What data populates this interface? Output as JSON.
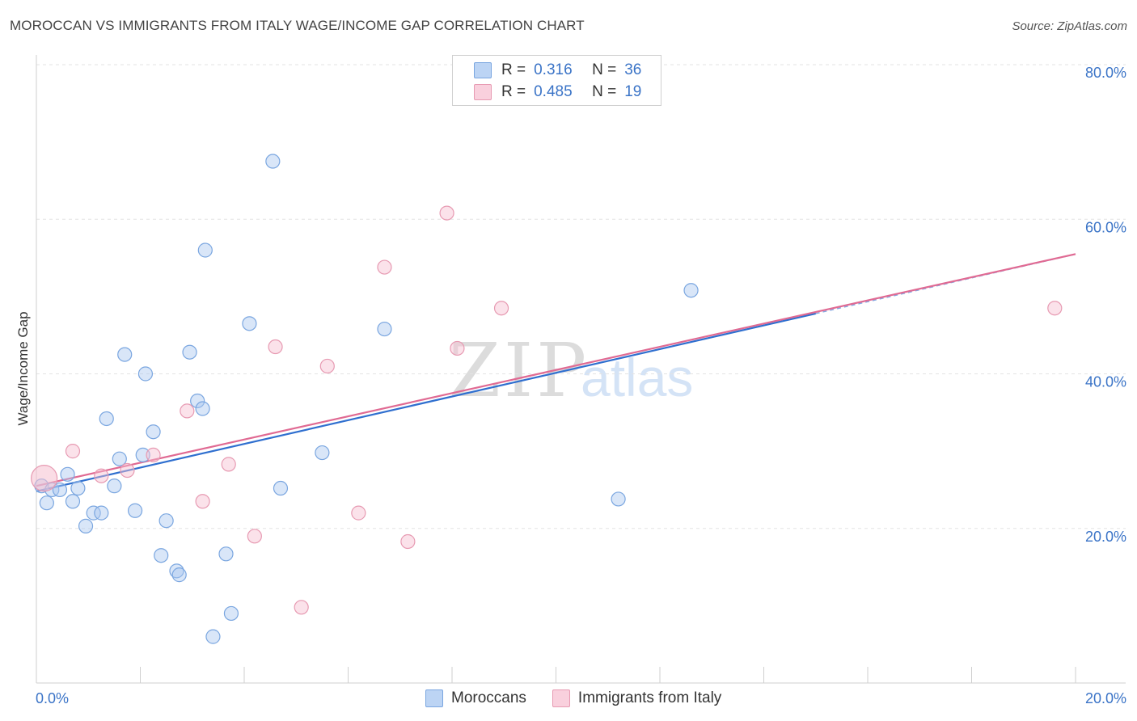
{
  "header": {
    "title": "MOROCCAN VS IMMIGRANTS FROM ITALY WAGE/INCOME GAP CORRELATION CHART",
    "source": "Source: ZipAtlas.com"
  },
  "watermark": {
    "zip": "ZIP",
    "atlas": "atlas"
  },
  "colors": {
    "blue_fill": "#aac8f0",
    "blue_stroke": "#7aa6e0",
    "blue_line": "#2f6fcf",
    "pink_fill": "#f6bfd0",
    "pink_stroke": "#e79ab2",
    "pink_line": "#e06a93",
    "accent_text": "#3b74c7"
  },
  "legend": {
    "rows": [
      {
        "r_label": "R =",
        "r_value": "0.316",
        "n_label": "N =",
        "n_value": "36"
      },
      {
        "r_label": "R =",
        "r_value": "0.485",
        "n_label": "N =",
        "n_value": "19"
      }
    ]
  },
  "bottom_legend": {
    "series1": "Moroccans",
    "series2": "Immigrants from Italy"
  },
  "chart_data": {
    "type": "scatter",
    "title": "MOROCCAN VS IMMIGRANTS FROM ITALY WAGE/INCOME GAP CORRELATION CHART",
    "xlabel": "",
    "ylabel": "Wage/Income Gap",
    "xlim": [
      0,
      20
    ],
    "ylim": [
      0,
      80
    ],
    "x_tick_labels": [
      "0.0%",
      "20.0%"
    ],
    "y_tick_labels": [
      "20.0%",
      "40.0%",
      "60.0%",
      "80.0%"
    ],
    "y_ticks": [
      20,
      40,
      60,
      80
    ],
    "series": [
      {
        "name": "Moroccans",
        "color": "#aac8f0",
        "points": [
          {
            "x": 0.1,
            "y": 25.5
          },
          {
            "x": 0.2,
            "y": 23.3
          },
          {
            "x": 0.3,
            "y": 25.0
          },
          {
            "x": 0.45,
            "y": 25.0
          },
          {
            "x": 0.6,
            "y": 27.0
          },
          {
            "x": 0.7,
            "y": 23.5
          },
          {
            "x": 0.8,
            "y": 25.2
          },
          {
            "x": 0.95,
            "y": 20.3
          },
          {
            "x": 1.1,
            "y": 22.0
          },
          {
            "x": 1.25,
            "y": 22.0
          },
          {
            "x": 1.35,
            "y": 34.2
          },
          {
            "x": 1.5,
            "y": 25.5
          },
          {
            "x": 1.6,
            "y": 29.0
          },
          {
            "x": 1.7,
            "y": 42.5
          },
          {
            "x": 1.9,
            "y": 22.3
          },
          {
            "x": 2.05,
            "y": 29.5
          },
          {
            "x": 2.1,
            "y": 40.0
          },
          {
            "x": 2.25,
            "y": 32.5
          },
          {
            "x": 2.4,
            "y": 16.5
          },
          {
            "x": 2.5,
            "y": 21.0
          },
          {
            "x": 2.7,
            "y": 14.5
          },
          {
            "x": 2.75,
            "y": 14.0
          },
          {
            "x": 2.95,
            "y": 42.8
          },
          {
            "x": 3.1,
            "y": 36.5
          },
          {
            "x": 3.2,
            "y": 35.5
          },
          {
            "x": 3.25,
            "y": 56.0
          },
          {
            "x": 3.4,
            "y": 6.0
          },
          {
            "x": 3.65,
            "y": 16.7
          },
          {
            "x": 3.75,
            "y": 9.0
          },
          {
            "x": 4.1,
            "y": 46.5
          },
          {
            "x": 4.55,
            "y": 67.5
          },
          {
            "x": 4.7,
            "y": 25.2
          },
          {
            "x": 5.5,
            "y": 29.8
          },
          {
            "x": 6.7,
            "y": 45.8
          },
          {
            "x": 11.2,
            "y": 23.8
          },
          {
            "x": 12.6,
            "y": 50.8
          }
        ]
      },
      {
        "name": "Immigrants from Italy",
        "color": "#f6bfd0",
        "points": [
          {
            "x": 0.15,
            "y": 26.5
          },
          {
            "x": 0.7,
            "y": 30.0
          },
          {
            "x": 1.25,
            "y": 26.8
          },
          {
            "x": 1.75,
            "y": 27.5
          },
          {
            "x": 2.25,
            "y": 29.5
          },
          {
            "x": 2.9,
            "y": 35.2
          },
          {
            "x": 3.2,
            "y": 23.5
          },
          {
            "x": 3.7,
            "y": 28.3
          },
          {
            "x": 4.2,
            "y": 19.0
          },
          {
            "x": 4.6,
            "y": 43.5
          },
          {
            "x": 5.1,
            "y": 9.8
          },
          {
            "x": 5.6,
            "y": 41.0
          },
          {
            "x": 6.2,
            "y": 22.0
          },
          {
            "x": 6.7,
            "y": 53.8
          },
          {
            "x": 7.15,
            "y": 18.3
          },
          {
            "x": 7.9,
            "y": 60.8
          },
          {
            "x": 8.1,
            "y": 43.3
          },
          {
            "x": 8.95,
            "y": 48.5
          },
          {
            "x": 19.6,
            "y": 48.5
          }
        ]
      }
    ],
    "trend_lines": [
      {
        "series": "Moroccans",
        "x_start": 0,
        "y_start": 24.8,
        "x_end": 15.0,
        "y_end": 47.8
      },
      {
        "series": "Immigrants from Italy",
        "x_start": 0,
        "y_start": 25.5,
        "x_end": 20.0,
        "y_end": 55.5
      }
    ]
  }
}
